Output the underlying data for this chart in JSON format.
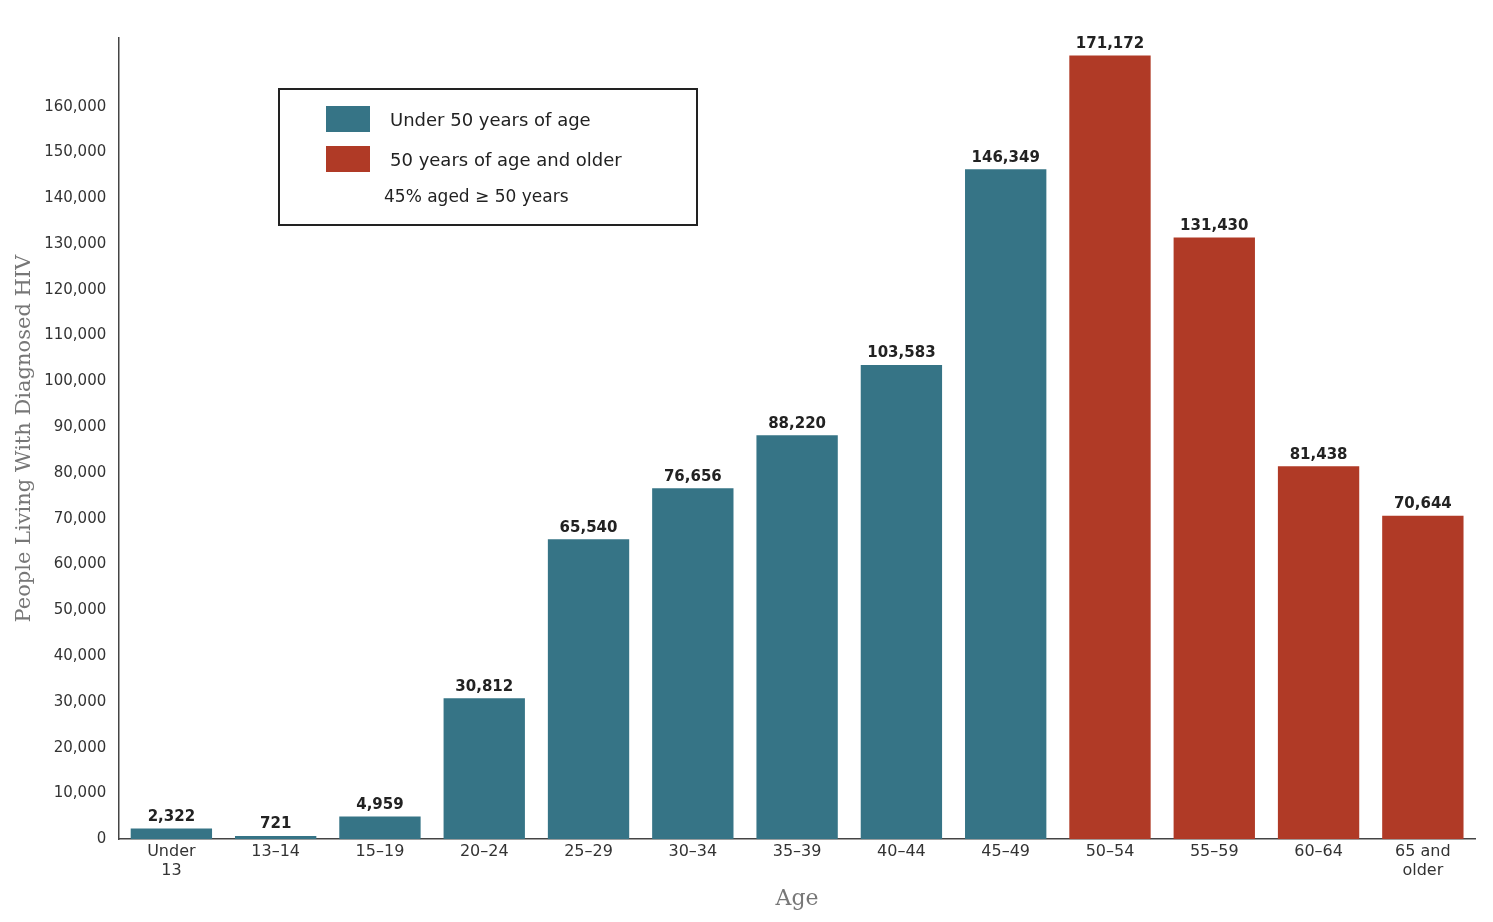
{
  "chart_data": {
    "type": "bar",
    "xlabel": "Age",
    "ylabel": "People Living With Diagnosed HIV",
    "categories": [
      "Under 13",
      "13–14",
      "15–19",
      "20–24",
      "25–29",
      "30–34",
      "35–39",
      "40–44",
      "45–49",
      "50–54",
      "55–59",
      "60–64",
      "65 and older"
    ],
    "series": [
      {
        "name": "Under 50 years of age",
        "color": "#367486",
        "values": [
          2322,
          721,
          4959,
          30812,
          65540,
          76656,
          88220,
          103583,
          146349,
          null,
          null,
          null,
          null
        ],
        "value_labels": [
          "2,322",
          "721",
          "4,959",
          "30,812",
          "65,540",
          "76,656",
          "88,220",
          "103,583",
          "146,349",
          null,
          null,
          null,
          null
        ]
      },
      {
        "name": "50 years of age and older",
        "color": "#b03a26",
        "values": [
          null,
          null,
          null,
          null,
          null,
          null,
          null,
          null,
          null,
          171172,
          131430,
          81438,
          70644
        ],
        "value_labels": [
          null,
          null,
          null,
          null,
          null,
          null,
          null,
          null,
          null,
          "171,172",
          "131,430",
          "81,438",
          "70,644"
        ]
      }
    ],
    "ylim": [
      0,
      175000
    ],
    "yticks": [
      0,
      {
        "value": 10000,
        "label": "10,000"
      },
      {
        "value": 20000,
        "label": "20,000"
      },
      {
        "value": 30000,
        "label": "30,000"
      },
      {
        "value": 40000,
        "label": "40,000"
      },
      {
        "value": 50000,
        "label": "50,000"
      },
      {
        "value": 60000,
        "label": "60,000"
      },
      {
        "value": 70000,
        "label": "70,000"
      },
      {
        "value": 80000,
        "label": "80,000"
      },
      {
        "value": 90000,
        "label": "90,000"
      },
      {
        "value": 100000,
        "label": "100,000"
      },
      {
        "value": 110000,
        "label": "110,000"
      },
      {
        "value": 120000,
        "label": "120,000"
      },
      {
        "value": 130000,
        "label": "130,000"
      },
      {
        "value": 140000,
        "label": "140,000"
      },
      {
        "value": 150000,
        "label": "150,000"
      },
      {
        "value": 160000,
        "label": "160,000"
      }
    ],
    "annotations": [
      "45% aged ≥ 50 years"
    ],
    "grid": false,
    "legend": "top left"
  }
}
